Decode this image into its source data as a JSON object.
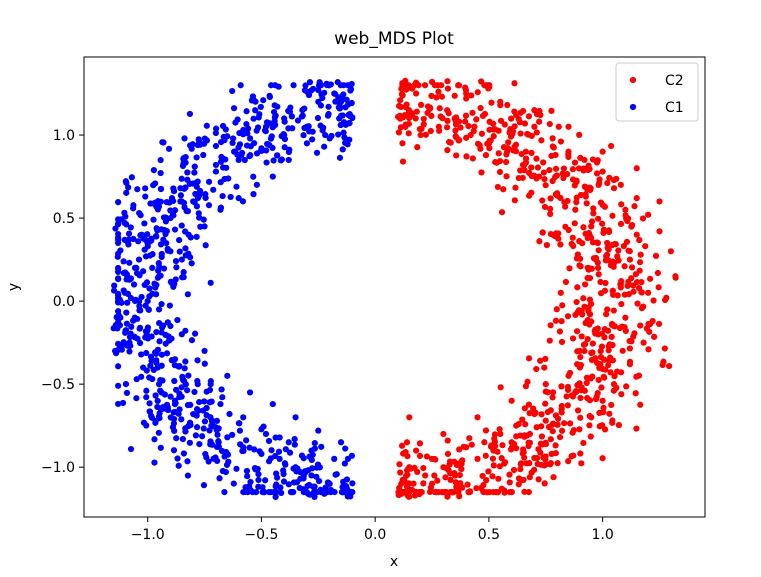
{
  "chart_data": {
    "type": "scatter",
    "title": "web_MDS Plot",
    "xlabel": "x",
    "ylabel": "y",
    "xlim": [
      -1.28,
      1.45
    ],
    "ylim": [
      -1.3,
      1.47
    ],
    "xticks": [
      -1.0,
      -0.5,
      0.0,
      0.5,
      1.0
    ],
    "xtick_labels": [
      "−1.0",
      "−0.5",
      "0.0",
      "0.5",
      "1.0"
    ],
    "yticks": [
      -1.0,
      -0.5,
      0.0,
      0.5,
      1.0
    ],
    "ytick_labels": [
      "−1.0",
      "−0.5",
      "0.0",
      "0.5",
      "1.0"
    ],
    "grid": false,
    "legend_position": "top-right",
    "series": [
      {
        "name": "C2",
        "color": "#ff0000",
        "shape": "right half-ring (annulus), x from about 0.1 to 1.35, y from about -1.2 to 1.35",
        "x": [
          0.12,
          0.18,
          0.25,
          0.32,
          0.4,
          0.48,
          0.55,
          0.62,
          0.7,
          0.78,
          0.85,
          0.92,
          1.0,
          1.08,
          1.15,
          1.2,
          1.25,
          1.3,
          1.32,
          1.28,
          1.22,
          1.18,
          1.12,
          1.05,
          1.0,
          0.95,
          0.98,
          1.02,
          1.08,
          1.12,
          1.15,
          1.1,
          1.05,
          0.98,
          0.92,
          0.88,
          0.82,
          0.75,
          0.68,
          0.6,
          0.52,
          0.45,
          0.38,
          0.3,
          0.22,
          0.15,
          0.12,
          0.2,
          0.28,
          0.35,
          0.42,
          0.5,
          0.58,
          0.65,
          0.72,
          0.8,
          0.88,
          0.95,
          1.02,
          1.1,
          0.9,
          0.85,
          0.78,
          0.7,
          0.62,
          0.55,
          0.48,
          0.4,
          0.32,
          0.25,
          0.18,
          0.14,
          0.3,
          0.45,
          0.6,
          0.75,
          0.9,
          1.05,
          1.2,
          1.25,
          1.15,
          1.0,
          0.85,
          0.7,
          0.55,
          0.4,
          0.25,
          0.15
        ],
        "y": [
          1.3,
          1.25,
          1.32,
          1.28,
          1.22,
          1.3,
          1.18,
          1.12,
          1.05,
          0.98,
          0.9,
          0.85,
          0.78,
          0.7,
          0.62,
          0.52,
          0.42,
          0.3,
          0.15,
          0.02,
          -0.12,
          -0.25,
          -0.38,
          -0.5,
          -0.6,
          -0.7,
          -0.2,
          -0.05,
          0.1,
          0.25,
          0.4,
          0.55,
          0.68,
          0.2,
          -0.3,
          -0.55,
          -0.65,
          -0.72,
          -0.8,
          -0.85,
          -0.9,
          -0.95,
          -0.98,
          -1.0,
          -1.05,
          -1.0,
          0.95,
          1.0,
          1.05,
          1.1,
          1.0,
          0.95,
          0.9,
          0.82,
          0.75,
          0.65,
          0.55,
          0.45,
          0.35,
          -0.1,
          -0.4,
          -0.45,
          -0.58,
          -0.68,
          -0.75,
          -0.8,
          -0.85,
          -0.88,
          -0.92,
          -0.95,
          -0.9,
          -0.85,
          -0.8,
          -0.7,
          -0.6,
          -0.5,
          -0.3,
          -0.15,
          0.05,
          0.6,
          0.8,
          0.9,
          1.05,
          1.15,
          1.2,
          1.25,
          -1.1,
          -0.7
        ],
        "points_approx": 900
      },
      {
        "name": "C1",
        "color": "#0000ff",
        "shape": "left half-ring (annulus), x from about -1.15 to -0.1, y from about -1.15 to 1.32",
        "x": [
          -0.12,
          -0.18,
          -0.25,
          -0.32,
          -0.4,
          -0.48,
          -0.55,
          -0.62,
          -0.7,
          -0.78,
          -0.85,
          -0.92,
          -1.0,
          -1.05,
          -1.1,
          -1.12,
          -1.08,
          -1.02,
          -0.95,
          -0.88,
          -0.8,
          -0.72,
          -0.65,
          -0.58,
          -0.5,
          -0.42,
          -0.35,
          -0.28,
          -0.2,
          -0.14,
          -0.15,
          -0.22,
          -0.3,
          -0.38,
          -0.45,
          -0.52,
          -0.6,
          -0.68,
          -0.75,
          -0.82,
          -0.9,
          -0.98,
          -1.06,
          -0.95,
          -0.85,
          -0.75,
          -0.65,
          -0.55,
          -0.45,
          -0.35,
          -0.25,
          -0.15,
          -0.9,
          -0.8,
          -0.7,
          -0.6,
          -0.5,
          -0.4,
          -0.3,
          -0.2,
          -0.88,
          -0.78,
          -0.68,
          -0.58,
          -0.48,
          -0.38,
          -0.28,
          -0.18,
          -1.0,
          -0.95,
          -0.9,
          -0.85
        ],
        "y": [
          1.3,
          1.25,
          1.2,
          1.15,
          1.1,
          1.05,
          0.98,
          0.9,
          0.82,
          0.72,
          0.6,
          0.48,
          0.35,
          0.2,
          0.05,
          -0.1,
          -0.25,
          -0.4,
          -0.5,
          -0.6,
          -0.68,
          -0.75,
          -0.82,
          -0.88,
          -0.92,
          -0.95,
          -1.0,
          -1.05,
          -1.1,
          -1.12,
          1.2,
          1.0,
          0.95,
          0.85,
          0.75,
          0.7,
          0.62,
          0.55,
          0.45,
          0.4,
          0.3,
          0.2,
          0.1,
          -0.05,
          -0.2,
          -0.3,
          -0.45,
          -0.55,
          -0.62,
          -0.7,
          -0.78,
          -0.85,
          0.5,
          0.6,
          0.78,
          0.85,
          0.92,
          1.0,
          1.05,
          0.98,
          -0.35,
          -0.5,
          -0.62,
          -0.7,
          -0.8,
          -0.85,
          -0.9,
          -0.95,
          0.0,
          0.15,
          -0.15,
          0.25
        ],
        "points_approx": 900
      }
    ]
  }
}
